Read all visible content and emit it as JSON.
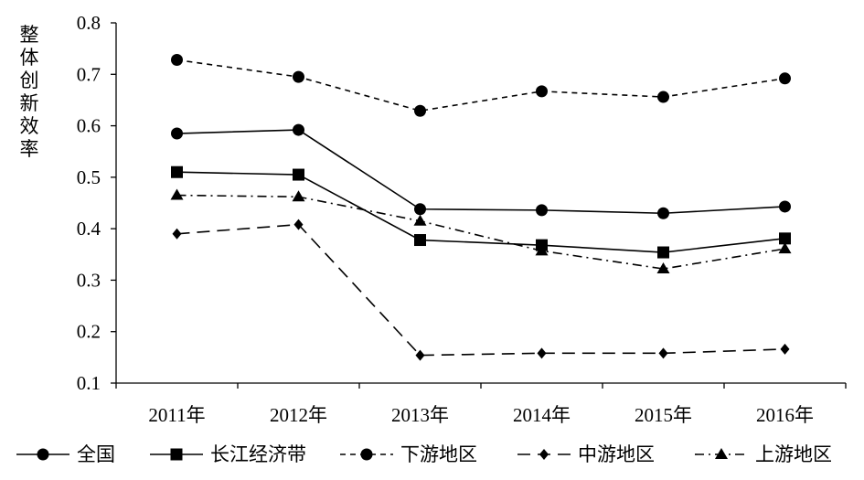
{
  "chart_data": {
    "type": "line",
    "ylabel": "整体创新效率",
    "xlabel": "",
    "title": "",
    "categories": [
      "2011年",
      "2012年",
      "2013年",
      "2014年",
      "2015年",
      "2016年"
    ],
    "ylim": [
      0.1,
      0.8
    ],
    "yticks": [
      "0.1",
      "0.2",
      "0.3",
      "0.4",
      "0.5",
      "0.6",
      "0.7",
      "0.8"
    ],
    "grid": false,
    "legend_position": "bottom",
    "series": [
      {
        "name": "全国",
        "values": [
          0.585,
          0.592,
          0.438,
          0.436,
          0.43,
          0.443
        ],
        "marker": "circle",
        "line": "solid"
      },
      {
        "name": "长江经济带",
        "values": [
          0.51,
          0.505,
          0.378,
          0.368,
          0.354,
          0.381
        ],
        "marker": "square",
        "line": "solid"
      },
      {
        "name": "下游地区",
        "values": [
          0.728,
          0.695,
          0.629,
          0.667,
          0.656,
          0.692
        ],
        "marker": "circle",
        "line": "dashed"
      },
      {
        "name": "中游地区",
        "values": [
          0.39,
          0.408,
          0.154,
          0.158,
          0.158,
          0.166
        ],
        "marker": "diamond",
        "line": "longdash"
      },
      {
        "name": "上游地区",
        "values": [
          0.465,
          0.462,
          0.415,
          0.357,
          0.322,
          0.361
        ],
        "marker": "triangle",
        "line": "dashdot"
      }
    ]
  }
}
